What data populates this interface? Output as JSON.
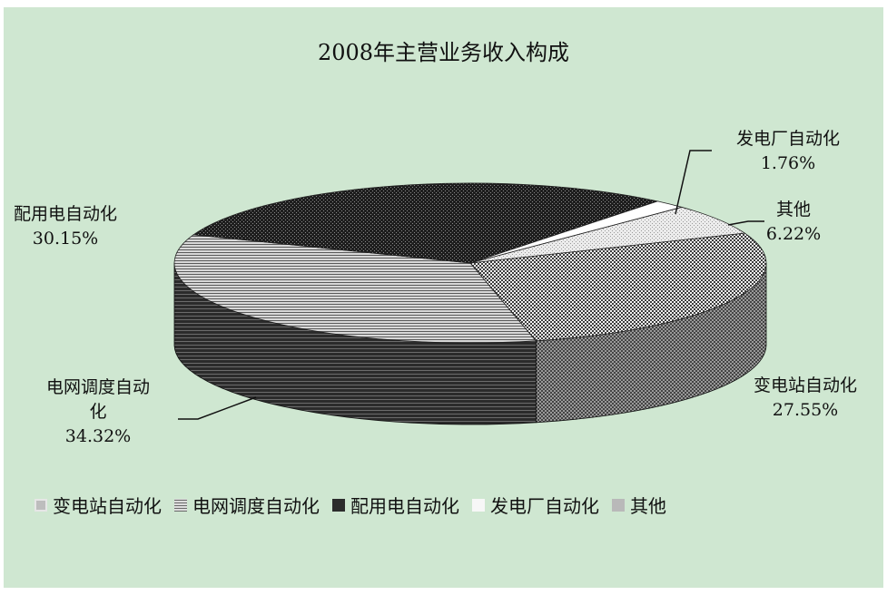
{
  "chart_data": {
    "type": "pie",
    "title": "2008年主营业务收入构成",
    "categories": [
      "变电站自动化",
      "电网调度自动化",
      "配用电自动化",
      "发电厂自动化",
      "其他"
    ],
    "values": [
      27.55,
      34.32,
      30.15,
      1.76,
      6.22
    ],
    "data_labels": [
      {
        "name": "变电站自动化",
        "value": "27.55%"
      },
      {
        "name_lines": [
          "电网调度自动",
          "化"
        ],
        "value": "34.32%"
      },
      {
        "name": "配用电自动化",
        "value": "30.15%"
      },
      {
        "name": "发电厂自动化",
        "value": "1.76%"
      },
      {
        "name": "其他",
        "value": "6.22%"
      }
    ],
    "legend_position": "bottom",
    "style": "3d-exploded-pie",
    "slice_colors": [
      "#c4c4c4",
      "#8a8a8a",
      "#3a3a3a",
      "#ffffff",
      "#b8b8b8"
    ]
  }
}
